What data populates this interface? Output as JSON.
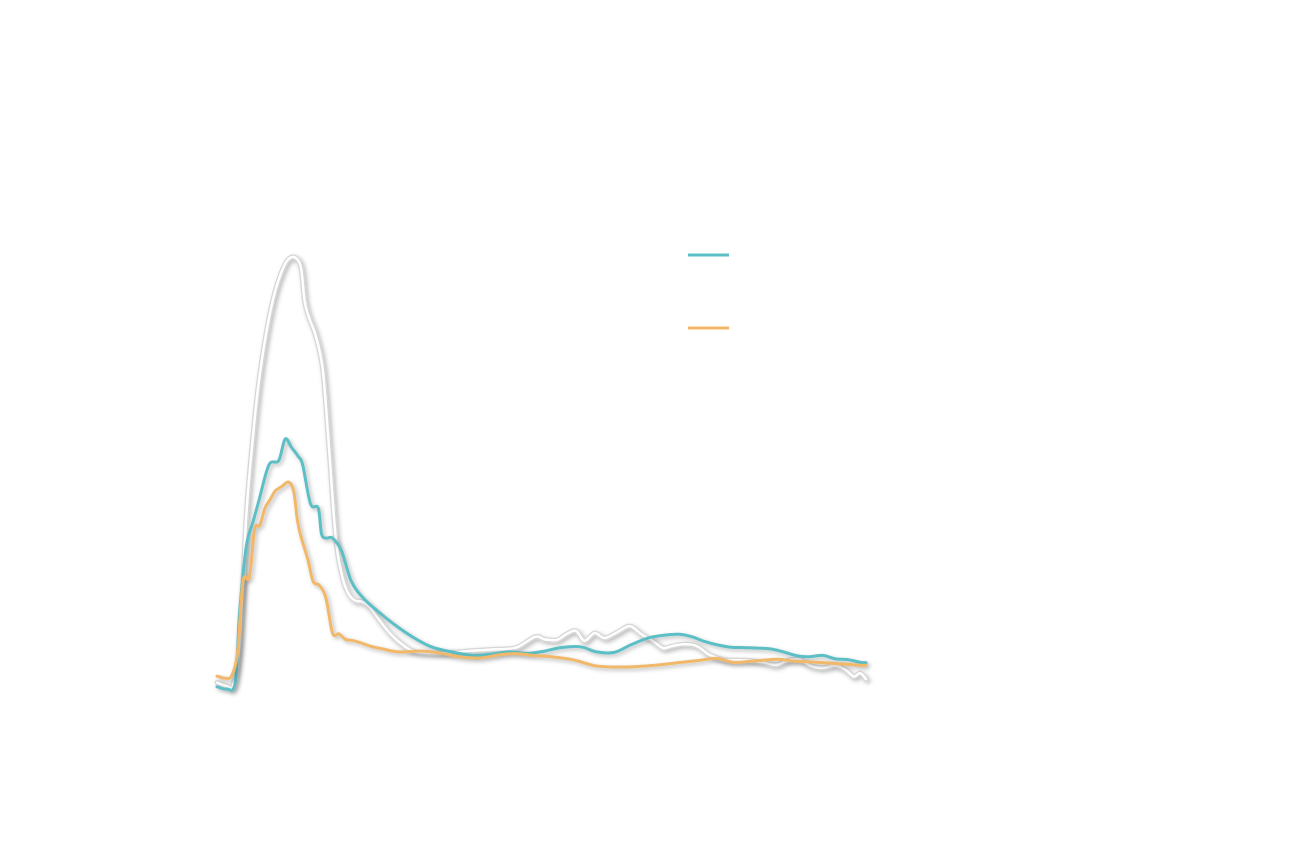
{
  "chart_data": {
    "type": "line",
    "title": "",
    "xlabel": "",
    "ylabel": "",
    "xlim": [
      0,
      100
    ],
    "ylim": [
      0,
      100
    ],
    "grid": false,
    "legend_position": "top-right",
    "series": [
      {
        "name": "",
        "color": "#ffffff",
        "outline": "#d6d6d6",
        "legend": false,
        "x": [
          0,
          1.5,
          2.5,
          3.5,
          4.5,
          5.5,
          6.5,
          8,
          9.5,
          11.2,
          12.8,
          13.5,
          14.2,
          15.2,
          16.3,
          17.3,
          18.3,
          19.3,
          20.3,
          21.3,
          22.3,
          23.5,
          25,
          26.6,
          28.4,
          30.2,
          33,
          36,
          39.5,
          43,
          46.1,
          49,
          50.5,
          52.4,
          53.8,
          55.3,
          56.6,
          58.2,
          59.7,
          61.7,
          63.6,
          65.3,
          67.3,
          68.7,
          70,
          71.8,
          73.9,
          75.8,
          78.2,
          80.3,
          82.3,
          84.3,
          86.2,
          88.1,
          89.9,
          91.3,
          93.2,
          95.3,
          96.8,
          98.1,
          99.1,
          100
        ],
        "y": [
          1.5,
          0.7,
          1.0,
          11,
          40,
          58,
          72,
          86,
          95,
          100,
          98.5,
          90,
          86,
          82,
          74,
          55,
          35,
          26,
          22,
          20.5,
          20.3,
          19,
          16,
          13,
          10.5,
          8.8,
          8.3,
          8.5,
          8.9,
          9.2,
          9.6,
          12.1,
          11.5,
          11.4,
          12.7,
          13.5,
          11.2,
          13.0,
          11.8,
          13.2,
          14.6,
          12.8,
          11.0,
          9.5,
          9.9,
          10.4,
          10.0,
          8.0,
          6.8,
          6.7,
          6.6,
          6.1,
          5.6,
          6.7,
          6.8,
          5.5,
          4.9,
          5.4,
          4.5,
          2.9,
          3.7,
          2.3
        ]
      },
      {
        "name": "",
        "color": "#5bbfc6",
        "legend": true,
        "x": [
          0,
          1.5,
          2.8,
          3.5,
          4.5,
          5.6,
          6.5,
          8,
          9.5,
          10.5,
          11.5,
          12.5,
          13.2,
          14.4,
          15.6,
          16.1,
          16.8,
          17.8,
          19.2,
          20.7,
          22.6,
          24.8,
          27.3,
          30,
          33,
          36.5,
          39.5,
          42.3,
          45,
          48,
          50.5,
          53,
          56,
          58.5,
          61.2,
          63.7,
          66.4,
          69,
          71.2,
          73.2,
          75.2,
          77.2,
          79.2,
          81.2,
          83.3,
          85.3,
          87.3,
          89.4,
          91.3,
          93.3,
          95.3,
          97.3,
          99.1,
          100
        ],
        "y": [
          0.5,
          0.0,
          1.5,
          18,
          33,
          39,
          44,
          52,
          53,
          58,
          56,
          54,
          52,
          43,
          42,
          36,
          35,
          35,
          32,
          25,
          21,
          18,
          15,
          12.2,
          9.8,
          8.5,
          7.8,
          8.1,
          8.6,
          8.3,
          8.8,
          9.6,
          9.8,
          8.6,
          8.5,
          10.2,
          11.8,
          12.5,
          12.7,
          12.1,
          11.0,
          10.2,
          9.7,
          9.6,
          9.5,
          9.3,
          8.6,
          7.7,
          7.5,
          7.8,
          7.0,
          6.8,
          6.2,
          6.1
        ]
      },
      {
        "name": "",
        "color": "#f1b86a",
        "legend": true,
        "x": [
          0,
          1.3,
          2.3,
          3.2,
          4.0,
          5.0,
          5.8,
          6.6,
          7.4,
          8.2,
          9.0,
          10.0,
          11.0,
          11.8,
          12.4,
          13.0,
          14.0,
          14.8,
          15.8,
          16.8,
          17.8,
          18.8,
          19.8,
          20.8,
          22.0,
          23.5,
          25.5,
          28,
          31.5,
          34.5,
          37.3,
          40.5,
          43.8,
          46.3,
          48.7,
          51.5,
          54.8,
          58.2,
          61.2,
          64.5,
          67.5,
          70.5,
          74.0,
          77.0,
          79.5,
          82.0,
          84.3,
          86.5,
          88.7,
          91.0,
          93.5,
          95.5,
          97.5,
          99.0,
          100
        ],
        "y": [
          3.0,
          2.5,
          3.2,
          9,
          25,
          26,
          37,
          38,
          42,
          44,
          46,
          47,
          48,
          46,
          39,
          35,
          30,
          25,
          24,
          21,
          13,
          12.8,
          11.5,
          11.3,
          10.8,
          10.0,
          9.3,
          8.6,
          8.8,
          8.3,
          7.5,
          7.2,
          8.0,
          8.2,
          7.8,
          7.5,
          6.8,
          5.4,
          5.1,
          5.2,
          5.5,
          6.0,
          6.6,
          7.1,
          6.2,
          6.4,
          6.7,
          6.9,
          6.5,
          6.3,
          6.1,
          5.9,
          5.7,
          5.5,
          5.5
        ]
      }
    ]
  }
}
